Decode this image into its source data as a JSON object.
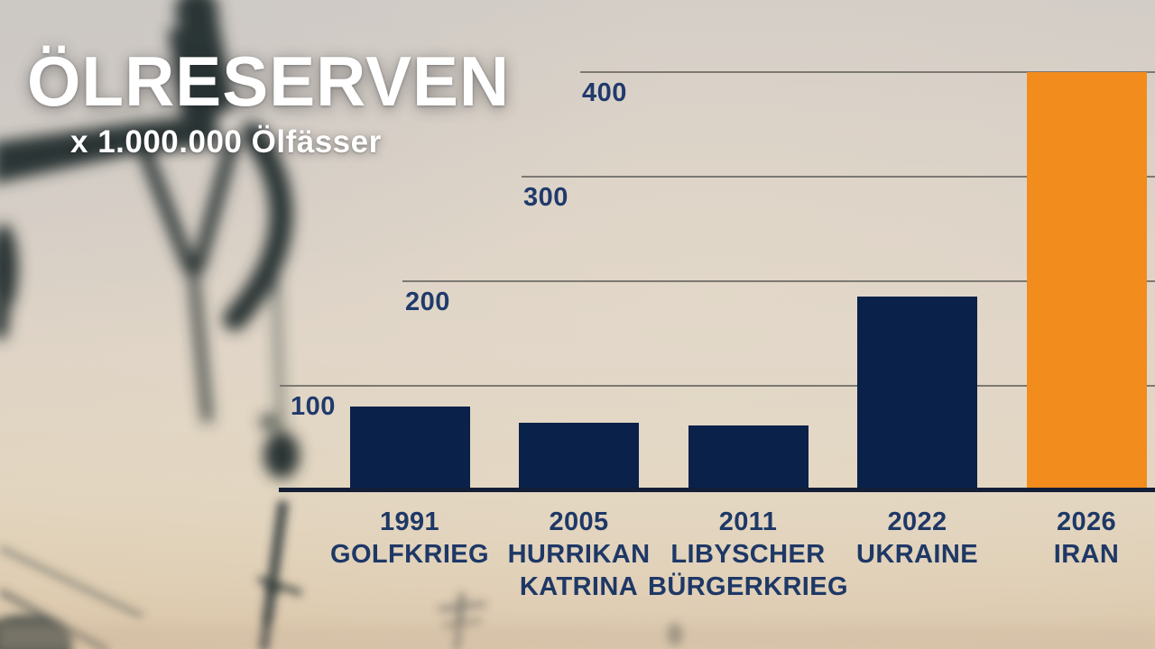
{
  "title": "ÖLRESERVEN",
  "subtitle": "x 1.000.000 Ölfässer",
  "colors": {
    "bar": "#0a2149",
    "highlight": "#f28c1d",
    "label": "#1e3866",
    "tick": "#203a6b",
    "gridline": "#7c7872",
    "baseline": "#141e36",
    "title_text": "#ffffff"
  },
  "chart_data": {
    "type": "bar",
    "title": "ÖLRESERVEN",
    "subtitle": "x 1.000.000 Ölfässer",
    "ylabel": "x 1.000.000 Ölfässer",
    "xlabel": "",
    "categories": [
      "1991",
      "2005",
      "2011",
      "2022",
      "2026"
    ],
    "values": [
      80,
      64,
      62,
      185,
      400
    ],
    "y_ticks": [
      100,
      200,
      300,
      400
    ],
    "ylim": [
      0,
      420
    ],
    "grid": true,
    "legend": false,
    "bars": [
      {
        "year": "1991",
        "event_lines": [
          "GOLFKRIEG"
        ],
        "value": 80,
        "highlight": false
      },
      {
        "year": "2005",
        "event_lines": [
          "HURRIKAN",
          "KATRINA"
        ],
        "value": 64,
        "highlight": false
      },
      {
        "year": "2011",
        "event_lines": [
          "LIBYSCHER",
          "BÜRGERKRIEG"
        ],
        "value": 62,
        "highlight": false
      },
      {
        "year": "2022",
        "event_lines": [
          "UKRAINE"
        ],
        "value": 185,
        "highlight": false
      },
      {
        "year": "2026",
        "event_lines": [
          "IRAN"
        ],
        "value": 400,
        "highlight": true
      }
    ]
  }
}
